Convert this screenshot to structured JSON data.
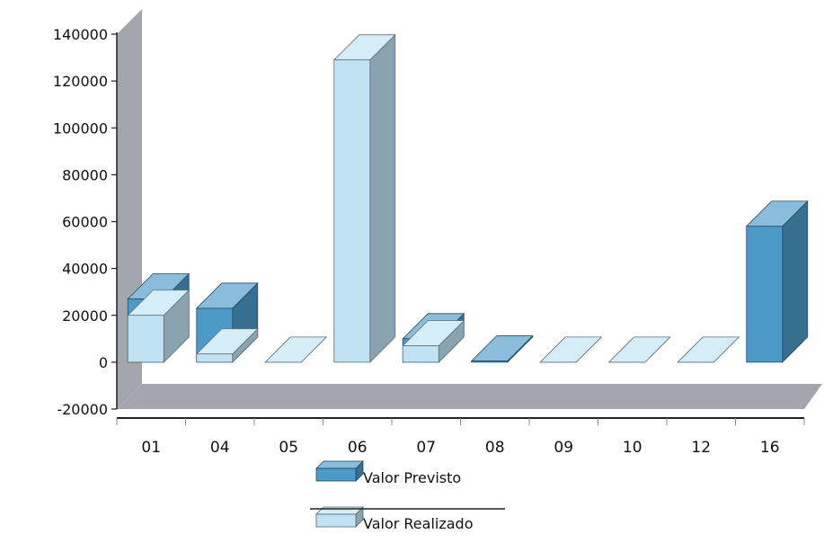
{
  "chart_data": {
    "type": "bar",
    "categories": [
      "01",
      "04",
      "05",
      "06",
      "07",
      "08",
      "09",
      "10",
      "12",
      "16"
    ],
    "series": [
      {
        "name": "Valor Previsto",
        "color": "#4b9ac8",
        "values": [
          27000,
          23000,
          0,
          0,
          10000,
          500,
          0,
          0,
          0,
          58000
        ]
      },
      {
        "name": "Valor Realizado",
        "color": "#bfe3f3",
        "values": [
          20000,
          3500,
          0,
          129000,
          7000,
          0,
          0,
          0,
          0,
          0
        ]
      }
    ],
    "ylim": [
      -20000,
      140000
    ],
    "yticks": [
      -20000,
      0,
      20000,
      40000,
      60000,
      80000,
      100000,
      120000,
      140000
    ],
    "ytick_labels": [
      "-20000",
      "0",
      "20000",
      "40000",
      "60000",
      "80000",
      "100000",
      "120000",
      "140000"
    ],
    "legend_position": "bottom",
    "grid": false,
    "style": "3d"
  }
}
